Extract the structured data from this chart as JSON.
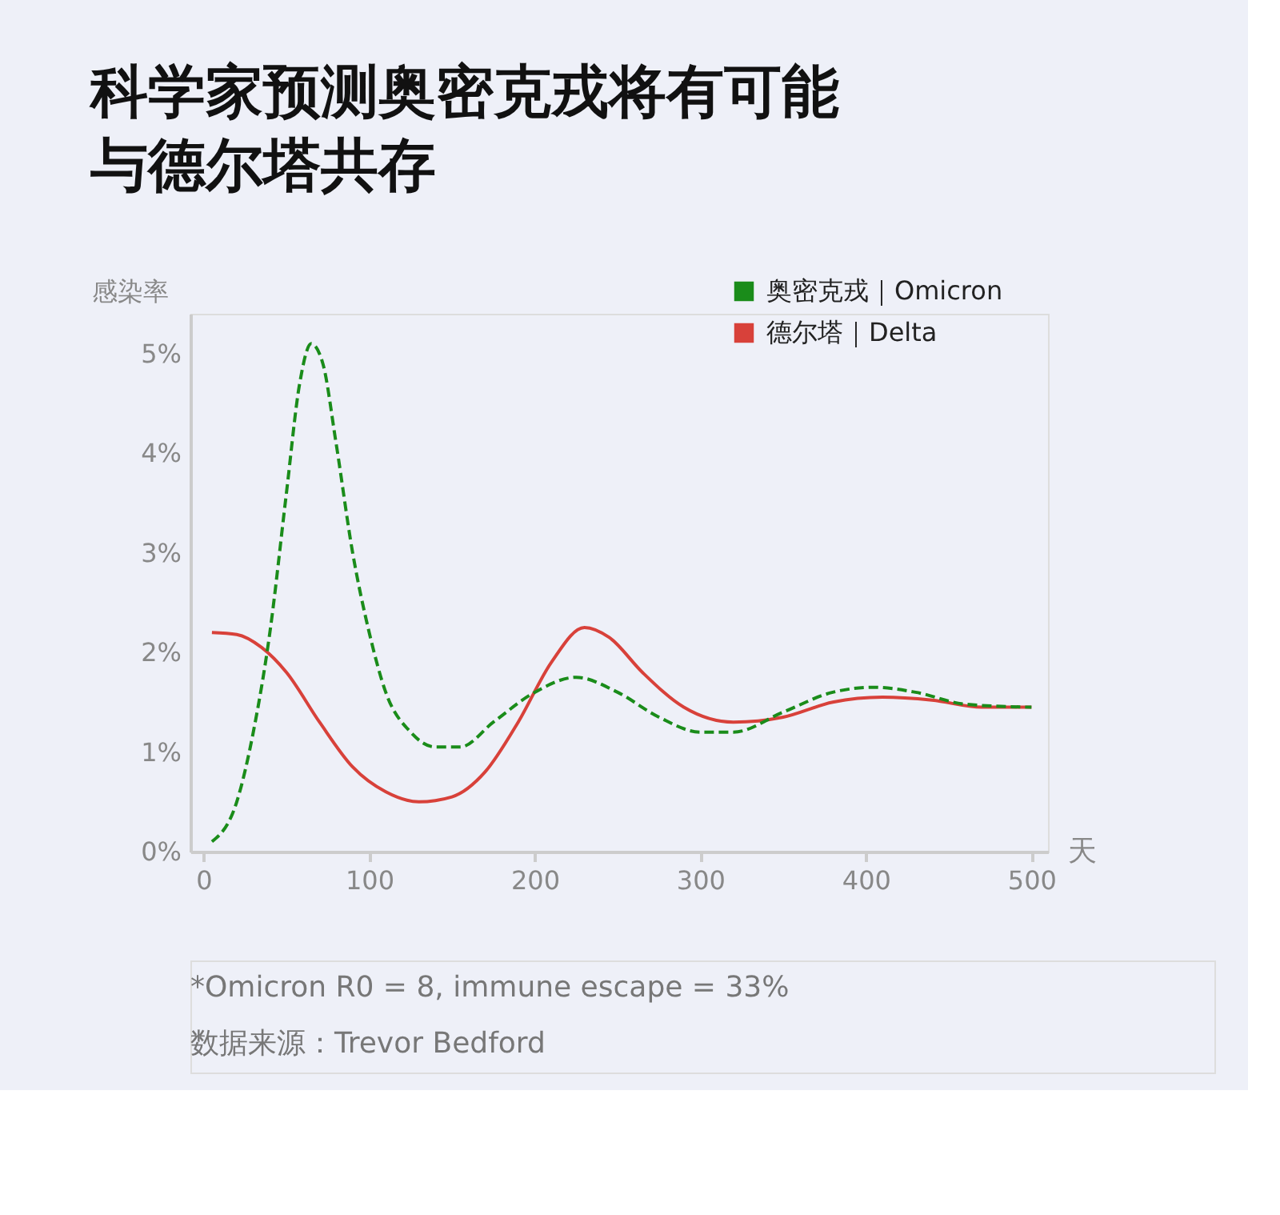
{
  "chart_data": {
    "type": "line",
    "title": [
      "科学家预测奥密克戎将有可能",
      "与德尔塔共存"
    ],
    "ylabel": "感染率",
    "xlabel": "天",
    "annotations": [
      "*Omicron R0 = 8, immune escape = 33%",
      "数据来源：Trevor Bedford"
    ],
    "xlim": [
      -8,
      510
    ],
    "xticks": [
      0,
      100,
      200,
      300,
      400,
      500
    ],
    "ylim": [
      0,
      5.4
    ],
    "yticks": [
      {
        "value": 0,
        "label": "0%"
      },
      {
        "value": 1,
        "label": "1%"
      },
      {
        "value": 2,
        "label": "2%"
      },
      {
        "value": 3,
        "label": "3%"
      },
      {
        "value": 4,
        "label": "4%"
      },
      {
        "value": 5,
        "label": "5%"
      }
    ],
    "grid": false,
    "legend": "top right",
    "marker": "none",
    "series": [
      {
        "name": "奥密克戎｜Omicron",
        "color": "#1a8c1a",
        "line_style": "dashed",
        "x": [
          5,
          20,
          30,
          40,
          50,
          58,
          65,
          72,
          80,
          90,
          100,
          110,
          125,
          140,
          155,
          175,
          200,
          225,
          250,
          275,
          300,
          320,
          350,
          380,
          405,
          430,
          460,
          500
        ],
        "values": [
          0.1,
          0.5,
          1.2,
          2.2,
          3.6,
          4.7,
          5.1,
          4.9,
          4.1,
          3.0,
          2.2,
          1.6,
          1.2,
          1.05,
          1.05,
          1.3,
          1.6,
          1.75,
          1.6,
          1.35,
          1.2,
          1.2,
          1.4,
          1.6,
          1.65,
          1.6,
          1.48,
          1.45
        ]
      },
      {
        "name": "德尔塔｜Delta",
        "color": "#d8413a",
        "line_style": "solid",
        "x": [
          5,
          20,
          35,
          50,
          70,
          90,
          110,
          130,
          150,
          170,
          190,
          210,
          230,
          245,
          265,
          290,
          320,
          350,
          380,
          410,
          440,
          470,
          500
        ],
        "values": [
          2.2,
          2.18,
          2.05,
          1.8,
          1.3,
          0.85,
          0.6,
          0.5,
          0.55,
          0.8,
          1.3,
          1.9,
          2.25,
          2.15,
          1.8,
          1.45,
          1.3,
          1.35,
          1.5,
          1.55,
          1.52,
          1.45,
          1.45
        ]
      }
    ]
  }
}
